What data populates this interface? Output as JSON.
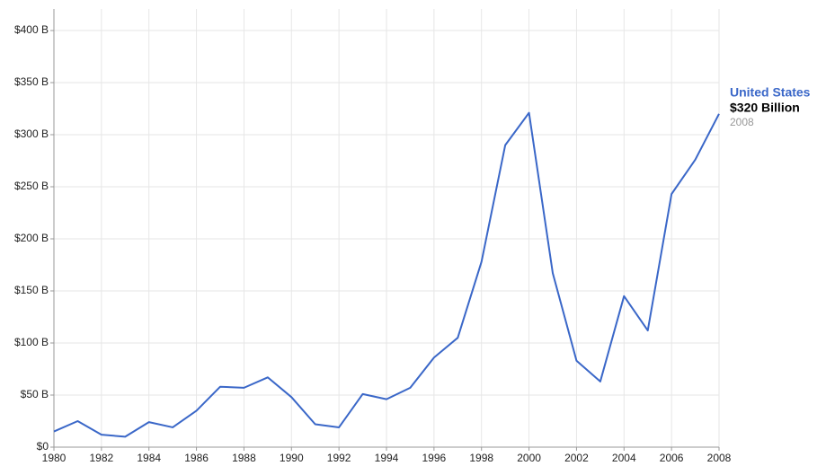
{
  "chart_data": {
    "type": "line",
    "x": [
      1980,
      1981,
      1982,
      1983,
      1984,
      1985,
      1986,
      1987,
      1988,
      1989,
      1990,
      1991,
      1992,
      1993,
      1994,
      1995,
      1996,
      1997,
      1998,
      1999,
      2000,
      2001,
      2002,
      2003,
      2004,
      2005,
      2006,
      2007,
      2008
    ],
    "series": [
      {
        "name": "United States",
        "color": "#3a67c8",
        "values": [
          15,
          25,
          12,
          10,
          24,
          19,
          35,
          58,
          57,
          67,
          48,
          22,
          19,
          51,
          46,
          57,
          86,
          105,
          178,
          290,
          321,
          167,
          83,
          63,
          145,
          112,
          243,
          276,
          320
        ]
      }
    ],
    "annotation": {
      "value_text": "$320 Billion",
      "x_text": "2008"
    },
    "xlim": [
      1980,
      2008
    ],
    "xticks": [
      1980,
      1982,
      1984,
      1986,
      1988,
      1990,
      1992,
      1994,
      1996,
      1998,
      2000,
      2002,
      2004,
      2006,
      2008
    ],
    "ylim": [
      0,
      400
    ],
    "yticks": [
      {
        "value": 0,
        "label": "$0"
      },
      {
        "value": 50,
        "label": "$50 B"
      },
      {
        "value": 100,
        "label": "$100 B"
      },
      {
        "value": 150,
        "label": "$150 B"
      },
      {
        "value": 200,
        "label": "$200 B"
      },
      {
        "value": 250,
        "label": "$250 B"
      },
      {
        "value": 300,
        "label": "$300 B"
      },
      {
        "value": 350,
        "label": "$350 B"
      },
      {
        "value": 400,
        "label": "$400 B"
      }
    ],
    "grid": true
  }
}
